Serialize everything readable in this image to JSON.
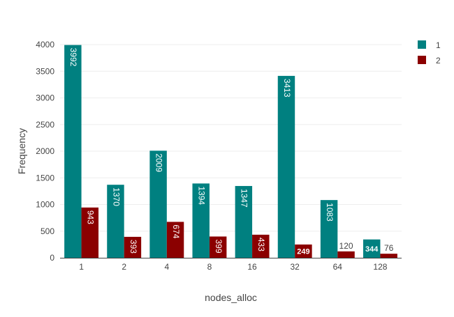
{
  "chart_data": {
    "type": "bar",
    "xlabel": "nodes_alloc",
    "ylabel": "Frequency",
    "categories": [
      "1",
      "2",
      "4",
      "8",
      "16",
      "32",
      "64",
      "128"
    ],
    "series": [
      {
        "name": "1",
        "color": "#008080",
        "values": [
          3992,
          1370,
          2009,
          1394,
          1347,
          3413,
          1083,
          344
        ]
      },
      {
        "name": "2",
        "color": "#8B0000",
        "values": [
          943,
          393,
          674,
          399,
          433,
          249,
          120,
          76
        ]
      }
    ],
    "ylim": [
      0,
      4000
    ],
    "yticks": [
      0,
      500,
      1000,
      1500,
      2000,
      2500,
      3000,
      3500,
      4000
    ],
    "grid": true,
    "legend_position": "top-right"
  }
}
